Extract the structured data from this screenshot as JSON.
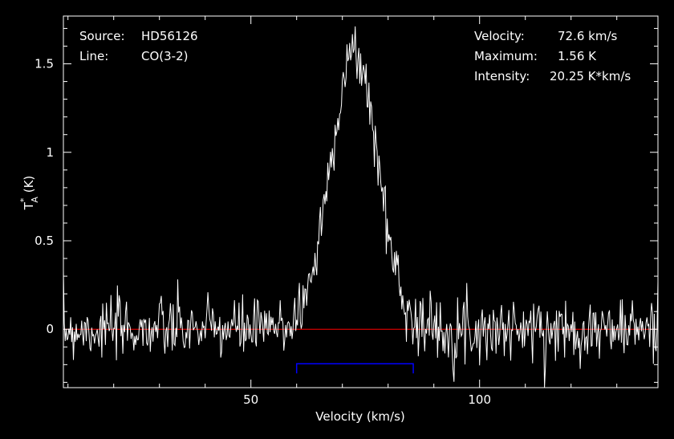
{
  "chart_data": {
    "type": "line",
    "xlabel": "Velocity (km/s)",
    "ylabel": "T",
    "ylabel_sup": "*",
    "ylabel_sub": "A",
    "ylabel_unit": " (K)",
    "xlim": [
      9,
      139
    ],
    "ylim": [
      -0.33,
      1.77
    ],
    "xticks": [
      {
        "value": 50,
        "label": "50"
      },
      {
        "value": 100,
        "label": "100"
      }
    ],
    "yticks": [
      {
        "value": 0,
        "label": "0"
      },
      {
        "value": 0.5,
        "label": "0.5"
      },
      {
        "value": 1,
        "label": "1"
      },
      {
        "value": 1.5,
        "label": "1.5"
      }
    ],
    "baseline": 0,
    "integration_window": [
      60,
      85.5
    ],
    "integration_window_level": -0.195,
    "colors": {
      "background": "#000000",
      "frame": "#ffffff",
      "spectrum": "#ffffff",
      "baseline": "#ff0000",
      "window": "#0000ff"
    },
    "series": [
      {
        "noise_rms": 0.085,
        "line_peak": 1.56,
        "line_center": 72.6,
        "line_fwhm": 12.2,
        "channel_width": 0.2
      }
    ],
    "annotations_left": [
      {
        "key": "Source:",
        "value": "HD56126"
      },
      {
        "key": "Line:",
        "value": "CO(3-2)"
      }
    ],
    "annotations_right": [
      {
        "key": "Velocity:",
        "value": "72.6 km/s"
      },
      {
        "key": "Maximum:",
        "value": "1.56 K"
      },
      {
        "key": "Intensity:",
        "value": "20.25 K*km/s"
      }
    ]
  }
}
